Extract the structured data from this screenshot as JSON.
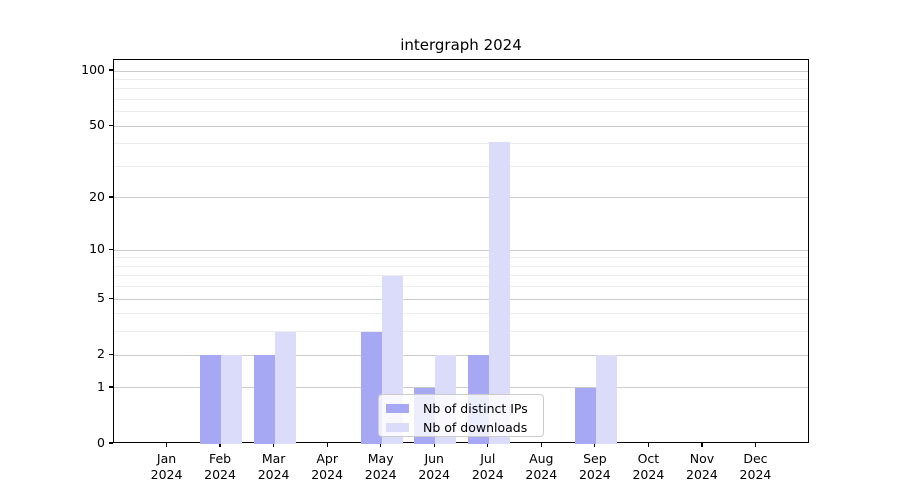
{
  "chart_data": {
    "type": "bar",
    "title": "intergraph 2024",
    "xlabel": "",
    "ylabel": "",
    "year": "2024",
    "months": [
      "Jan",
      "Feb",
      "Mar",
      "Apr",
      "May",
      "Jun",
      "Jul",
      "Aug",
      "Sep",
      "Oct",
      "Nov",
      "Dec"
    ],
    "series": [
      {
        "name": "Nb of distinct IPs",
        "color": "#a6a8f3",
        "values": [
          0,
          2,
          2,
          0,
          3,
          1,
          2,
          0,
          1,
          0,
          0,
          0
        ]
      },
      {
        "name": "Nb of downloads",
        "color": "#dbdcf9",
        "values": [
          0,
          2,
          3,
          0,
          7,
          2,
          41,
          0,
          2,
          0,
          0,
          0
        ]
      }
    ],
    "yscale": "symlog",
    "yticks": [
      0,
      1,
      2,
      5,
      10,
      20,
      50,
      100
    ],
    "yticks_minor": [
      3,
      4,
      6,
      7,
      8,
      9,
      30,
      40,
      60,
      70,
      80,
      90
    ],
    "ylim": [
      0,
      117
    ],
    "grid": "on",
    "legend_position": "lower center",
    "colors": {
      "grid_major": "#cccccc",
      "grid_minor": "#ececec",
      "axis": "#000000",
      "text": "#000000",
      "legend_background": "rgba(255,255,255,0.8)",
      "legend_border": "#cccccc"
    }
  }
}
